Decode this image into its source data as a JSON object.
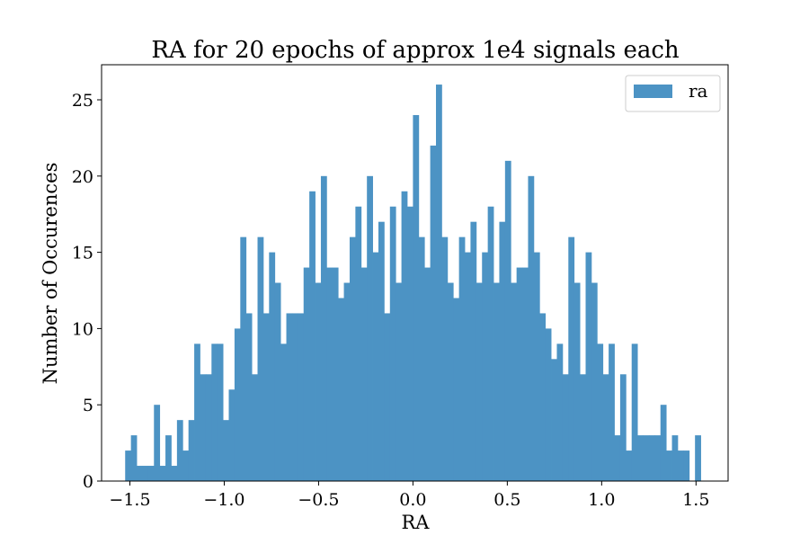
{
  "chart_data": {
    "type": "bar",
    "subtype": "histogram",
    "title": "RA for 20 epochs of approx 1e4 signals each",
    "xlabel": "RA",
    "ylabel": "Number of Occurences",
    "xlim": [
      -1.65,
      1.67
    ],
    "ylim": [
      0,
      27.3
    ],
    "x_start": -1.525,
    "bin_width": 0.0305,
    "xticks": [
      -1.5,
      -1.0,
      -0.5,
      0.0,
      0.5,
      1.0,
      1.5
    ],
    "xtick_labels": [
      "−1.5",
      "−1.0",
      "−0.5",
      "0.0",
      "0.5",
      "1.0",
      "1.5"
    ],
    "yticks": [
      0,
      5,
      10,
      15,
      20,
      25
    ],
    "ytick_labels": [
      "0",
      "5",
      "10",
      "15",
      "20",
      "25"
    ],
    "grid": false,
    "legend_position": "top-right",
    "series": [
      {
        "name": "ra",
        "color": "#4c93c4",
        "values": [
          2,
          3,
          1,
          1,
          1,
          5,
          1,
          3,
          1,
          4,
          2,
          4,
          9,
          7,
          7,
          9,
          9,
          4,
          6,
          10,
          16,
          11,
          7,
          16,
          11,
          15,
          13,
          9,
          11,
          11,
          11,
          14,
          19,
          13,
          20,
          14,
          14,
          12,
          13,
          16,
          18,
          14,
          20,
          15,
          17,
          11,
          18,
          13,
          19,
          18,
          24,
          16,
          14,
          22,
          26,
          16,
          13,
          12,
          16,
          15,
          17,
          13,
          15,
          18,
          13,
          17,
          21,
          13,
          14,
          14,
          20,
          15,
          11,
          10,
          8,
          9,
          7,
          16,
          13,
          7,
          15,
          13,
          9,
          7,
          9,
          3,
          7,
          2,
          9,
          3,
          3,
          3,
          3,
          5,
          2,
          3,
          2,
          2,
          0,
          3
        ]
      }
    ]
  }
}
